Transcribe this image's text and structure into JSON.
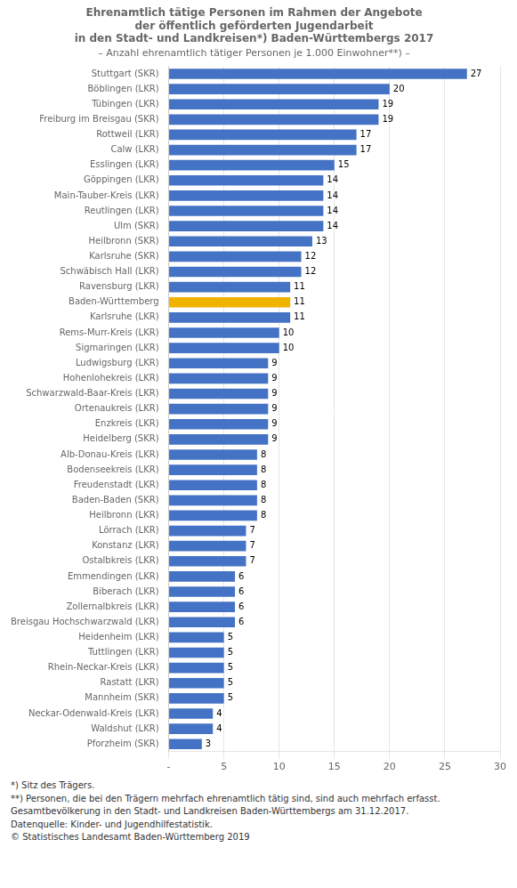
{
  "chart_data": {
    "type": "bar",
    "orientation": "horizontal",
    "title": [
      "Ehrenamtlich tätige Personen im Rahmen der Angebote",
      "der öffentlich geförderten Jugendarbeit",
      "in den Stadt- und Landkreisen*) Baden-Württembergs 2017"
    ],
    "subtitle": "– Anzahl ehrenamtlich tätiger Personen je 1.000 Einwohner**) –",
    "annotations": [
      "*) Sitz des Trägers.",
      "**) Personen, die bei den Trägern mehrfach ehrenamtlich tätig sind, sind auch mehrfach erfasst.",
      "Gesamtbevölkerung  in den Stadt- und Landkreisen Baden-Württembergs am 31.12.2017.",
      "Datenquelle: Kinder- und Jugendhilfestatistik.",
      "© Statistisches Landesamt Baden-Württemberg 2019"
    ],
    "categories": [
      "Stuttgart (SKR)",
      "Böblingen (LKR)",
      "Tübingen (LKR)",
      "Freiburg im Breisgau (SKR)",
      "Rottweil (LKR)",
      "Calw (LKR)",
      "Esslingen (LKR)",
      "Göppingen (LKR)",
      "Main-Tauber-Kreis (LKR)",
      "Reutlingen (LKR)",
      "Ulm (SKR)",
      "Heilbronn (SKR)",
      "Karlsruhe (SKR)",
      "Schwäbisch Hall (LKR)",
      "Ravensburg (LKR)",
      "Baden-Württemberg",
      "Karlsruhe (LKR)",
      "Rems-Murr-Kreis (LKR)",
      "Sigmaringen (LKR)",
      "Ludwigsburg (LKR)",
      "Hohenlohekreis (LKR)",
      "Schwarzwald-Baar-Kreis (LKR)",
      "Ortenaukreis (LKR)",
      "Enzkreis (LKR)",
      "Heidelberg (SKR)",
      "Alb-Donau-Kreis (LKR)",
      "Bodenseekreis (LKR)",
      "Freudenstadt (LKR)",
      "Baden-Baden (SKR)",
      "Heilbronn (LKR)",
      "Lörrach (LKR)",
      "Konstanz (LKR)",
      "Ostalbkreis (LKR)",
      "Emmendingen (LKR)",
      "Biberach (LKR)",
      "Zollernalbkreis (LKR)",
      "Breisgau Hochschwarzwald (LKR)",
      "Heidenheim (LKR)",
      "Tuttlingen (LKR)",
      "Rhein-Neckar-Kreis (LKR)",
      "Rastatt (LKR)",
      "Mannheim (SKR)",
      "Neckar-Odenwald-Kreis (LKR)",
      "Waldshut (LKR)",
      "Pforzheim (SKR)"
    ],
    "values": [
      27,
      20,
      19,
      19,
      17,
      17,
      15,
      14,
      14,
      14,
      14,
      13,
      12,
      12,
      11,
      11,
      11,
      10,
      10,
      9,
      9,
      9,
      9,
      9,
      9,
      8,
      8,
      8,
      8,
      8,
      7,
      7,
      7,
      6,
      6,
      6,
      6,
      5,
      5,
      5,
      5,
      5,
      4,
      4,
      3
    ],
    "colors": [
      "#4472c4",
      "#4472c4",
      "#4472c4",
      "#4472c4",
      "#4472c4",
      "#4472c4",
      "#4472c4",
      "#4472c4",
      "#4472c4",
      "#4472c4",
      "#4472c4",
      "#4472c4",
      "#4472c4",
      "#4472c4",
      "#4472c4",
      "#f0b400",
      "#4472c4",
      "#4472c4",
      "#4472c4",
      "#4472c4",
      "#4472c4",
      "#4472c4",
      "#4472c4",
      "#4472c4",
      "#4472c4",
      "#4472c4",
      "#4472c4",
      "#4472c4",
      "#4472c4",
      "#4472c4",
      "#4472c4",
      "#4472c4",
      "#4472c4",
      "#4472c4",
      "#4472c4",
      "#4472c4",
      "#4472c4",
      "#4472c4",
      "#4472c4",
      "#4472c4",
      "#4472c4",
      "#4472c4",
      "#4472c4",
      "#4472c4",
      "#4472c4"
    ],
    "xlim": [
      0,
      30
    ],
    "xticks": [
      {
        "value": 0,
        "label": "-"
      },
      5,
      10,
      15,
      20,
      25,
      30
    ],
    "grid": true,
    "data_labels": true
  }
}
